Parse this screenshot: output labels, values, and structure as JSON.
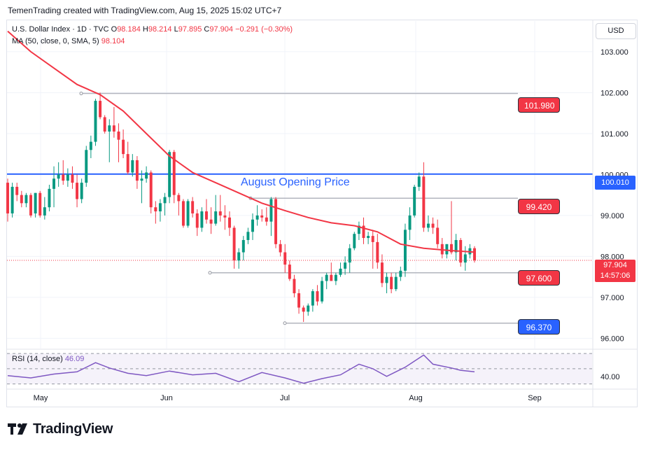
{
  "header": {
    "text": "TemenTrading created with TradingView.com, Aug 15, 2025 15:02 UTC+7"
  },
  "symbol": {
    "name": "U.S. Dollar Index · 1D · TVC",
    "open_label": "O",
    "open": "98.184",
    "high_label": "H",
    "high": "98.214",
    "low_label": "L",
    "low": "97.895",
    "close_label": "C",
    "close": "97.904",
    "change": "−0.291 (−0.30%)"
  },
  "ma_legend": {
    "label": "MA (50, close, 0, SMA, 5)",
    "value": "98.104"
  },
  "rsi_legend": {
    "label": "RSI (14, close)",
    "value": "46.09"
  },
  "currency_button": "USD",
  "price_axis": {
    "ticks": [
      "103.000",
      "102.000",
      "101.000",
      "100.000",
      "99.000",
      "98.000",
      "97.000",
      "96.000"
    ]
  },
  "rsi_axis": {
    "ticks": [
      "40.00"
    ]
  },
  "time_axis": {
    "ticks": [
      "May",
      "Jun",
      "Jul",
      "Aug",
      "Sep"
    ]
  },
  "annotations": {
    "august_opening_label": "August Opening Price",
    "levels": [
      {
        "label": "101.980",
        "value": 101.98,
        "kind": "resistance"
      },
      {
        "label": "100.010",
        "value": 100.01,
        "kind": "opening"
      },
      {
        "label": "99.420",
        "value": 99.42,
        "kind": "resistance"
      },
      {
        "label": "97.600",
        "value": 97.6,
        "kind": "support"
      },
      {
        "label": "96.370",
        "value": 96.37,
        "kind": "support"
      }
    ],
    "current_price": "97.904",
    "countdown": "14:57:06"
  },
  "colors": {
    "up": "#089981",
    "down": "#f23645",
    "ma": "#f23645",
    "rsi": "#7e57c2",
    "opening_line": "#2962ff",
    "grid": "#f0f3fa"
  },
  "logo": {
    "text": "TradingView"
  },
  "chart_data": {
    "type": "candlestick",
    "ylim": [
      95.75,
      103.75
    ],
    "rsi_ylim": [
      26,
      72
    ],
    "candles": [
      [
        99.8,
        99.9,
        98.85,
        99.05
      ],
      [
        99.05,
        99.8,
        98.95,
        99.7
      ],
      [
        99.7,
        99.8,
        99.35,
        99.5
      ],
      [
        99.5,
        99.6,
        99.2,
        99.3
      ],
      [
        99.3,
        99.55,
        99.2,
        99.5
      ],
      [
        99.5,
        99.55,
        98.95,
        99.0
      ],
      [
        99.05,
        99.55,
        98.95,
        99.55
      ],
      [
        99.55,
        99.6,
        98.95,
        99.0
      ],
      [
        99.0,
        99.45,
        98.9,
        99.2
      ],
      [
        99.2,
        99.75,
        99.1,
        99.65
      ],
      [
        99.65,
        100.2,
        99.2,
        99.9
      ],
      [
        99.9,
        100.3,
        99.7,
        100.0
      ],
      [
        100.0,
        100.35,
        99.75,
        99.85
      ],
      [
        99.85,
        100.15,
        99.7,
        100.0
      ],
      [
        100.0,
        100.2,
        99.65,
        99.8
      ],
      [
        99.8,
        100.0,
        99.2,
        99.4
      ],
      [
        99.4,
        99.9,
        99.3,
        99.8
      ],
      [
        99.8,
        100.7,
        99.7,
        100.6
      ],
      [
        100.6,
        100.95,
        100.4,
        100.8
      ],
      [
        100.8,
        101.85,
        100.7,
        101.8
      ],
      [
        101.8,
        102.0,
        101.35,
        101.4
      ],
      [
        101.4,
        101.45,
        101.0,
        101.05
      ],
      [
        101.05,
        101.35,
        100.3,
        101.2
      ],
      [
        101.2,
        101.65,
        100.9,
        101.05
      ],
      [
        101.05,
        101.25,
        100.3,
        100.85
      ],
      [
        100.85,
        101.1,
        100.4,
        100.5
      ],
      [
        100.5,
        100.8,
        100.0,
        100.05
      ],
      [
        100.05,
        100.5,
        99.95,
        100.35
      ],
      [
        100.35,
        100.45,
        99.65,
        99.85
      ],
      [
        99.85,
        100.1,
        99.3,
        99.9
      ],
      [
        99.9,
        100.2,
        99.8,
        100.05
      ],
      [
        100.05,
        100.1,
        99.05,
        99.2
      ],
      [
        99.2,
        99.35,
        98.8,
        99.1
      ],
      [
        99.1,
        99.4,
        98.85,
        99.3
      ],
      [
        99.3,
        99.55,
        99.0,
        99.45
      ],
      [
        99.45,
        100.6,
        99.3,
        100.55
      ],
      [
        100.55,
        100.6,
        99.3,
        99.5
      ],
      [
        99.5,
        99.55,
        99.0,
        99.35
      ],
      [
        99.35,
        99.4,
        98.7,
        98.75
      ],
      [
        98.75,
        99.4,
        98.7,
        99.35
      ],
      [
        99.35,
        99.45,
        98.95,
        99.05
      ],
      [
        99.05,
        99.15,
        98.5,
        98.7
      ],
      [
        98.7,
        99.2,
        98.6,
        99.1
      ],
      [
        99.1,
        99.4,
        98.8,
        98.9
      ],
      [
        98.9,
        99.2,
        98.55,
        98.8
      ],
      [
        98.8,
        99.5,
        98.75,
        99.1
      ],
      [
        99.1,
        99.5,
        98.85,
        99.0
      ],
      [
        99.0,
        99.25,
        98.65,
        98.95
      ],
      [
        98.95,
        99.1,
        98.5,
        98.7
      ],
      [
        98.7,
        98.75,
        97.7,
        97.9
      ],
      [
        97.9,
        98.2,
        97.7,
        98.1
      ],
      [
        98.1,
        98.5,
        97.9,
        98.4
      ],
      [
        98.4,
        98.7,
        98.3,
        98.6
      ],
      [
        98.6,
        99.05,
        98.4,
        98.9
      ],
      [
        98.9,
        99.25,
        98.75,
        99.0
      ],
      [
        99.0,
        99.15,
        98.85,
        98.95
      ],
      [
        98.95,
        99.2,
        98.75,
        98.85
      ],
      [
        98.85,
        99.45,
        98.5,
        99.4
      ],
      [
        99.4,
        99.45,
        98.2,
        98.3
      ],
      [
        98.3,
        98.4,
        98.0,
        98.1
      ],
      [
        98.1,
        98.3,
        97.6,
        97.8
      ],
      [
        97.8,
        97.9,
        97.4,
        97.45
      ],
      [
        97.45,
        97.55,
        97.0,
        97.1
      ],
      [
        97.1,
        97.2,
        96.6,
        96.75
      ],
      [
        96.75,
        96.8,
        96.4,
        96.65
      ],
      [
        96.65,
        96.85,
        96.55,
        96.8
      ],
      [
        96.8,
        97.2,
        96.65,
        97.15
      ],
      [
        97.15,
        97.3,
        96.8,
        96.9
      ],
      [
        96.9,
        97.5,
        96.85,
        97.4
      ],
      [
        97.4,
        97.6,
        97.2,
        97.55
      ],
      [
        97.55,
        97.85,
        97.4,
        97.4
      ],
      [
        97.4,
        97.6,
        97.3,
        97.55
      ],
      [
        97.55,
        97.85,
        97.5,
        97.7
      ],
      [
        97.7,
        98.0,
        97.55,
        97.85
      ],
      [
        97.85,
        98.3,
        97.6,
        98.2
      ],
      [
        98.2,
        98.6,
        98.15,
        98.55
      ],
      [
        98.55,
        98.85,
        98.4,
        98.75
      ],
      [
        98.75,
        98.95,
        98.3,
        98.45
      ],
      [
        98.45,
        98.6,
        98.3,
        98.5
      ],
      [
        98.5,
        98.65,
        97.7,
        98.35
      ],
      [
        98.35,
        98.55,
        97.7,
        97.85
      ],
      [
        97.85,
        98.05,
        97.25,
        97.35
      ],
      [
        97.35,
        97.6,
        97.1,
        97.5
      ],
      [
        97.5,
        97.6,
        97.1,
        97.2
      ],
      [
        97.2,
        97.6,
        97.15,
        97.5
      ],
      [
        97.5,
        97.75,
        97.4,
        97.65
      ],
      [
        97.65,
        98.8,
        97.5,
        98.65
      ],
      [
        98.65,
        99.2,
        98.4,
        99.0
      ],
      [
        99.0,
        99.75,
        98.95,
        99.7
      ],
      [
        99.7,
        100.05,
        99.6,
        99.95
      ],
      [
        99.95,
        100.3,
        98.6,
        98.7
      ],
      [
        98.7,
        99.0,
        98.6,
        98.8
      ],
      [
        98.8,
        98.95,
        98.55,
        98.7
      ],
      [
        98.7,
        98.9,
        98.2,
        98.3
      ],
      [
        98.3,
        98.45,
        97.95,
        98.05
      ],
      [
        98.05,
        98.3,
        97.95,
        98.3
      ],
      [
        98.3,
        99.35,
        98.05,
        98.1
      ],
      [
        98.1,
        98.55,
        97.9,
        98.4
      ],
      [
        98.4,
        98.45,
        97.75,
        97.85
      ],
      [
        97.85,
        98.25,
        97.65,
        98.05
      ],
      [
        98.05,
        98.3,
        97.95,
        98.2
      ],
      [
        98.2,
        98.25,
        97.85,
        97.904
      ]
    ],
    "ma": [
      [
        0,
        103.5
      ],
      [
        5,
        103.0
      ],
      [
        10,
        102.6
      ],
      [
        15,
        102.2
      ],
      [
        20,
        101.95
      ],
      [
        25,
        101.55
      ],
      [
        30,
        101.0
      ],
      [
        35,
        100.45
      ],
      [
        40,
        100.05
      ],
      [
        45,
        99.8
      ],
      [
        50,
        99.55
      ],
      [
        55,
        99.3
      ],
      [
        60,
        99.12
      ],
      [
        65,
        98.95
      ],
      [
        70,
        98.82
      ],
      [
        75,
        98.75
      ],
      [
        80,
        98.6
      ],
      [
        85,
        98.3
      ],
      [
        90,
        98.2
      ],
      [
        95,
        98.15
      ],
      [
        101,
        98.104
      ]
    ],
    "rsi": [
      [
        0,
        41
      ],
      [
        5,
        38
      ],
      [
        10,
        43
      ],
      [
        15,
        46
      ],
      [
        19,
        58
      ],
      [
        22,
        51
      ],
      [
        26,
        44
      ],
      [
        30,
        41
      ],
      [
        35,
        47
      ],
      [
        40,
        42
      ],
      [
        45,
        44
      ],
      [
        50,
        33
      ],
      [
        55,
        45
      ],
      [
        60,
        38
      ],
      [
        64,
        31
      ],
      [
        68,
        37
      ],
      [
        72,
        42
      ],
      [
        76,
        56
      ],
      [
        79,
        50
      ],
      [
        82,
        40
      ],
      [
        86,
        52
      ],
      [
        90,
        68
      ],
      [
        92,
        56
      ],
      [
        96,
        51
      ],
      [
        98,
        48
      ],
      [
        101,
        46.09
      ]
    ]
  }
}
